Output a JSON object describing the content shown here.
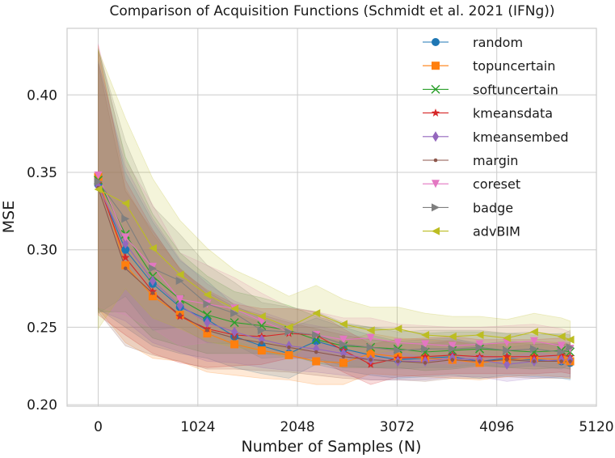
{
  "chart_data": {
    "type": "line",
    "title": "Comparison of Acquisition Functions (Schmidt et al. 2021 (IFNg))",
    "xlabel": "Number of Samples (N)",
    "ylabel": "MSE",
    "xlim": [
      -320,
      5120
    ],
    "ylim": [
      0.199,
      0.443
    ],
    "xticks": [
      0,
      1024,
      2048,
      3072,
      4096,
      5120
    ],
    "xtick_labels": [
      "0",
      "1024",
      "2048",
      "3072",
      "4096",
      "5120"
    ],
    "yticks": [
      0.2,
      0.25,
      0.3,
      0.35,
      0.4
    ],
    "ytick_labels": [
      "0.20",
      "0.25",
      "0.30",
      "0.35",
      "0.40"
    ],
    "grid": true,
    "legend_position": "top-right",
    "x": [
      0,
      280,
      560,
      840,
      1120,
      1400,
      1680,
      1960,
      2240,
      2520,
      2800,
      3080,
      3360,
      3640,
      3920,
      4200,
      4480,
      4760,
      4850
    ],
    "series": [
      {
        "name": "random",
        "color": "#1f77b4",
        "marker": "circle",
        "values": [
          0.342,
          0.3,
          0.278,
          0.263,
          0.255,
          0.244,
          0.238,
          0.233,
          0.241,
          0.236,
          0.232,
          0.229,
          0.23,
          0.231,
          0.228,
          0.23,
          0.229,
          0.228,
          0.227
        ],
        "band": [
          0.08,
          0.05,
          0.04,
          0.03,
          0.025,
          0.02,
          0.018,
          0.016,
          0.015,
          0.014,
          0.013,
          0.012,
          0.012,
          0.012,
          0.011,
          0.011,
          0.011,
          0.011,
          0.011
        ]
      },
      {
        "name": "topuncertain",
        "color": "#ff7f0e",
        "marker": "square",
        "values": [
          0.347,
          0.29,
          0.27,
          0.258,
          0.246,
          0.239,
          0.235,
          0.232,
          0.228,
          0.227,
          0.233,
          0.231,
          0.23,
          0.229,
          0.227,
          0.229,
          0.23,
          0.229,
          0.228
        ],
        "band": [
          0.085,
          0.05,
          0.04,
          0.03,
          0.025,
          0.02,
          0.018,
          0.016,
          0.015,
          0.014,
          0.013,
          0.012,
          0.012,
          0.012,
          0.011,
          0.011,
          0.011,
          0.011,
          0.011
        ]
      },
      {
        "name": "softuncertain",
        "color": "#2ca02c",
        "marker": "x",
        "values": [
          0.345,
          0.31,
          0.283,
          0.268,
          0.258,
          0.253,
          0.251,
          0.248,
          0.242,
          0.238,
          0.237,
          0.236,
          0.234,
          0.235,
          0.236,
          0.235,
          0.234,
          0.235,
          0.234
        ],
        "band": [
          0.085,
          0.05,
          0.04,
          0.03,
          0.025,
          0.02,
          0.018,
          0.016,
          0.015,
          0.014,
          0.013,
          0.012,
          0.012,
          0.012,
          0.011,
          0.011,
          0.011,
          0.011,
          0.011
        ]
      },
      {
        "name": "kmeansdata",
        "color": "#d62728",
        "marker": "star",
        "values": [
          0.343,
          0.295,
          0.273,
          0.257,
          0.249,
          0.245,
          0.244,
          0.246,
          0.245,
          0.235,
          0.226,
          0.23,
          0.231,
          0.232,
          0.231,
          0.231,
          0.231,
          0.232,
          0.231
        ],
        "band": [
          0.085,
          0.05,
          0.04,
          0.03,
          0.025,
          0.02,
          0.018,
          0.016,
          0.015,
          0.014,
          0.013,
          0.012,
          0.012,
          0.012,
          0.011,
          0.011,
          0.011,
          0.011,
          0.011
        ]
      },
      {
        "name": "kmeansembed",
        "color": "#9467bd",
        "marker": "diamond",
        "values": [
          0.341,
          0.304,
          0.28,
          0.264,
          0.253,
          0.247,
          0.242,
          0.238,
          0.236,
          0.233,
          0.229,
          0.228,
          0.228,
          0.23,
          0.229,
          0.226,
          0.228,
          0.229,
          0.229
        ],
        "band": [
          0.08,
          0.05,
          0.04,
          0.03,
          0.025,
          0.02,
          0.018,
          0.016,
          0.015,
          0.014,
          0.013,
          0.012,
          0.012,
          0.012,
          0.011,
          0.011,
          0.011,
          0.011,
          0.011
        ]
      },
      {
        "name": "margin",
        "color": "#8c564b",
        "marker": "dot",
        "values": [
          0.34,
          0.288,
          0.272,
          0.258,
          0.248,
          0.243,
          0.24,
          0.237,
          0.234,
          0.231,
          0.229,
          0.228,
          0.227,
          0.229,
          0.228,
          0.229,
          0.228,
          0.228,
          0.228
        ],
        "band": [
          0.08,
          0.05,
          0.04,
          0.03,
          0.025,
          0.02,
          0.018,
          0.016,
          0.015,
          0.014,
          0.013,
          0.012,
          0.012,
          0.012,
          0.011,
          0.011,
          0.011,
          0.011,
          0.011
        ]
      },
      {
        "name": "coreset",
        "color": "#e377c2",
        "marker": "triangle-down",
        "values": [
          0.348,
          0.308,
          0.289,
          0.268,
          0.265,
          0.262,
          0.254,
          0.247,
          0.245,
          0.242,
          0.243,
          0.24,
          0.239,
          0.238,
          0.239,
          0.24,
          0.241,
          0.238,
          0.236
        ],
        "band": [
          0.085,
          0.05,
          0.04,
          0.03,
          0.025,
          0.02,
          0.018,
          0.016,
          0.015,
          0.014,
          0.013,
          0.012,
          0.012,
          0.012,
          0.011,
          0.011,
          0.011,
          0.011,
          0.011
        ]
      },
      {
        "name": "badge",
        "color": "#7f7f7f",
        "marker": "triangle-right",
        "values": [
          0.344,
          0.32,
          0.288,
          0.28,
          0.265,
          0.259,
          0.248,
          0.247,
          0.245,
          0.239,
          0.237,
          0.235,
          0.236,
          0.236,
          0.237,
          0.235,
          0.236,
          0.234,
          0.237
        ],
        "band": [
          0.085,
          0.05,
          0.04,
          0.03,
          0.025,
          0.02,
          0.018,
          0.016,
          0.015,
          0.014,
          0.013,
          0.012,
          0.012,
          0.012,
          0.011,
          0.011,
          0.011,
          0.011,
          0.011
        ]
      },
      {
        "name": "advBIM",
        "color": "#bcbd22",
        "marker": "triangle-left",
        "values": [
          0.339,
          0.33,
          0.301,
          0.284,
          0.271,
          0.262,
          0.257,
          0.25,
          0.259,
          0.252,
          0.248,
          0.249,
          0.245,
          0.244,
          0.245,
          0.243,
          0.247,
          0.244,
          0.242
        ],
        "band": [
          0.09,
          0.055,
          0.045,
          0.035,
          0.03,
          0.025,
          0.022,
          0.02,
          0.018,
          0.016,
          0.015,
          0.014,
          0.014,
          0.013,
          0.012,
          0.012,
          0.012,
          0.012,
          0.012
        ]
      }
    ]
  }
}
